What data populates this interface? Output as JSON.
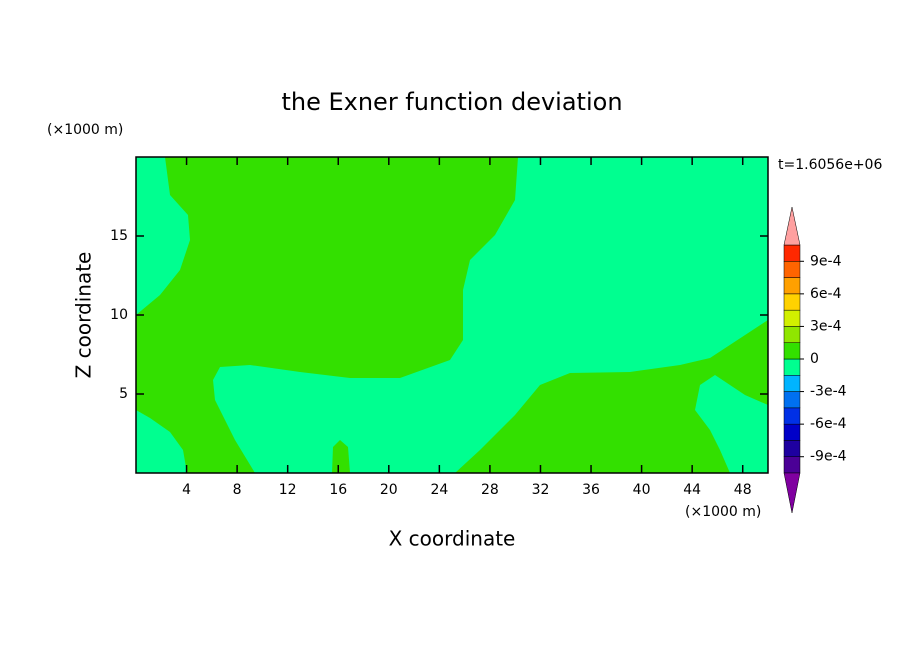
{
  "chart_data": {
    "type": "contour",
    "title": "the Exner function deviation",
    "x_label": "X coordinate",
    "y_label": "Z coordinate",
    "x_unit": "(×1000 m)",
    "y_unit": "(×1000 m)",
    "time_label": "t=1.6056e+06",
    "xlim": [
      0,
      50
    ],
    "xticks": [
      4,
      8,
      12,
      16,
      20,
      24,
      28,
      32,
      36,
      40,
      44,
      48
    ],
    "ylim": [
      0,
      20
    ],
    "yticks": [
      5,
      10,
      15
    ],
    "levels": [
      -0.00105,
      -0.0009,
      -0.00075,
      -0.0006,
      -0.00045,
      -0.0003,
      -0.00015,
      0,
      0.00015,
      0.0003,
      0.00045,
      0.0006,
      0.00075,
      0.0009,
      0.00105
    ],
    "colors": [
      "#4b0096",
      "#1e00a0",
      "#0000c8",
      "#0030e6",
      "#0070f0",
      "#00b4ff",
      "#00ff90",
      "#33e000",
      "#90e600",
      "#d2f000",
      "#ffd200",
      "#ffa000",
      "#ff6400",
      "#ff2800"
    ],
    "over_color": "#ffa0a0",
    "under_color": "#8000a0",
    "cticks": [
      {
        "value": 0.0009,
        "label": "9e-4"
      },
      {
        "value": 0.0006,
        "label": "6e-4"
      },
      {
        "value": 0.0003,
        "label": "3e-4"
      },
      0,
      {
        "value": -0.0003,
        "label": "-3e-4"
      },
      {
        "value": -0.0006,
        "label": "-6e-4"
      },
      {
        "value": -0.0009,
        "label": "-9e-4"
      }
    ]
  }
}
